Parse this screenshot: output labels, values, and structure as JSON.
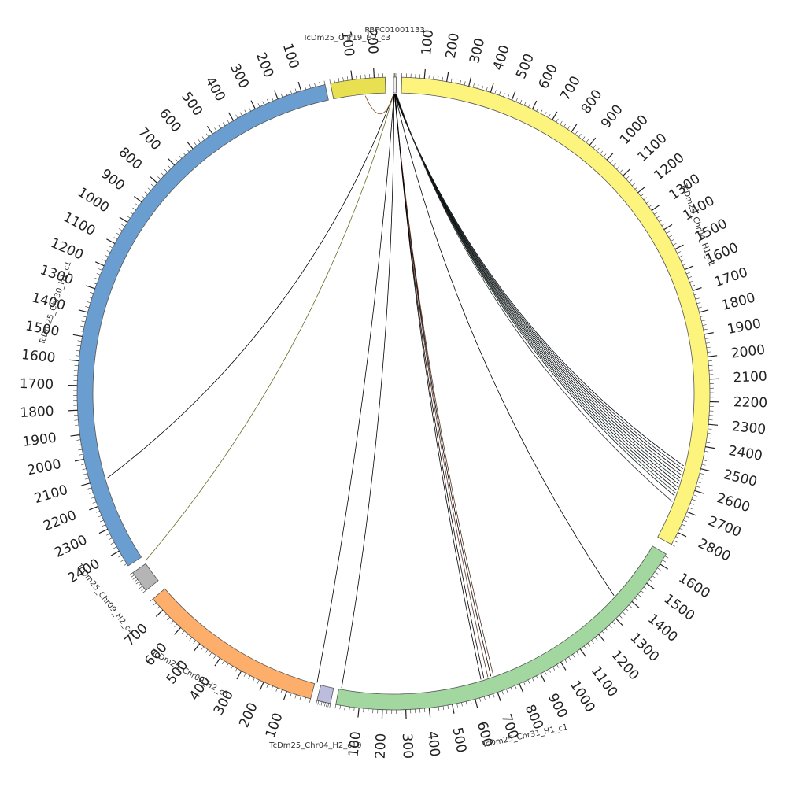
{
  "diagram": {
    "type": "circos",
    "segments": [
      {
        "name": "PBFC01001133",
        "length": 12,
        "color": "#eeeeee",
        "label_angle": 0.2,
        "label_r": 462,
        "label_rot": 0,
        "ticks": [],
        "tick_end": 12
      },
      {
        "name": "TcDm25_Chr04_H1_c1",
        "length": 2860,
        "color": "#fdf47e",
        "label_angle": 61,
        "label_r": 442,
        "label_rot": 71,
        "ticks": [
          "100",
          "200",
          "300",
          "400",
          "500",
          "600",
          "700",
          "800",
          "900",
          "1000",
          "1100",
          "1200",
          "1300",
          "1400",
          "1500",
          "1600",
          "1700",
          "1800",
          "1900",
          "2000",
          "2100",
          "2200",
          "2300",
          "2400",
          "2500",
          "2600",
          "2700",
          "2800"
        ],
        "tick_end": 2860
      },
      {
        "name": "TcDm25_Chr31_H1_c1",
        "length": 1650,
        "color": "#a3d7a0",
        "label_angle": 159,
        "label_r": 466,
        "label_rot": -12,
        "ticks": [
          "1600",
          "1500",
          "1400",
          "1300",
          "1200",
          "1100",
          "1000",
          "900",
          "800",
          "700",
          "600",
          "500",
          "400",
          "300",
          "200",
          "100"
        ],
        "tick_end": 1650,
        "reverse": true
      },
      {
        "name": "TcDm25_Chr04_H2_c10",
        "length": 40,
        "color": "#bcbcdd",
        "label_angle": 192.5,
        "label_r": 458,
        "label_rot": 0,
        "ticks": [],
        "tick_end": 40
      },
      {
        "name": "TcDm25_Chr09_H2_c5",
        "length": 760,
        "color": "#fdae6b",
        "label_angle": 216,
        "label_r": 440,
        "label_rot": 30,
        "ticks": [
          "100",
          "200",
          "300",
          "400",
          "500",
          "600",
          "700"
        ],
        "tick_end": 760
      },
      {
        "name": "TcDm25_Chr09_H2_c4",
        "length": 40,
        "color": "#b5b5b5",
        "label_angle": 234.5,
        "label_r": 450,
        "label_rot": 52,
        "ticks": [],
        "tick_end": 40
      },
      {
        "name": "TcDm25_Chr30_H1_c1",
        "length": 2470,
        "color": "#6a9ed0",
        "label_angle": 285,
        "label_r": 445,
        "label_rot": -72,
        "ticks": [
          "2400",
          "2300",
          "2200",
          "2100",
          "2000",
          "1900",
          "1800",
          "1700",
          "1600",
          "1500",
          "1400",
          "1300",
          "1200",
          "1100",
          "1000",
          "900",
          "800",
          "700",
          "600",
          "500",
          "400",
          "300",
          "200",
          "100"
        ],
        "tick_end": 2470,
        "reverse": true
      },
      {
        "name": "TcDm25_Chr19_H2_c3",
        "length": 250,
        "color": "#e8e050",
        "label_angle": 352.5,
        "label_r": 456,
        "label_rot": 0,
        "ticks": [
          "100",
          "200"
        ],
        "tick_end": 250
      }
    ],
    "links": [
      {
        "from_deg": 0.2,
        "to_deg": 104.0,
        "color": "#000000"
      },
      {
        "from_deg": 0.2,
        "to_deg": 104.6,
        "color": "#1a2a3a"
      },
      {
        "from_deg": 0.2,
        "to_deg": 105.2,
        "color": "#000000"
      },
      {
        "from_deg": 0.3,
        "to_deg": 105.8,
        "color": "#2a2a2a"
      },
      {
        "from_deg": 0.3,
        "to_deg": 106.4,
        "color": "#000000"
      },
      {
        "from_deg": 0.3,
        "to_deg": 107.0,
        "color": "#113333"
      },
      {
        "from_deg": 0.4,
        "to_deg": 107.6,
        "color": "#000000"
      },
      {
        "from_deg": 0.4,
        "to_deg": 108.2,
        "color": "#222222"
      },
      {
        "from_deg": 0.4,
        "to_deg": 108.8,
        "color": "#000000"
      },
      {
        "from_deg": 0.5,
        "to_deg": 109.4,
        "color": "#1b3b3b"
      },
      {
        "from_deg": 0.5,
        "to_deg": 110.0,
        "color": "#000000"
      },
      {
        "from_deg": 0.6,
        "to_deg": 111.2,
        "color": "#333333"
      },
      {
        "from_deg": 0.3,
        "to_deg": 132.5,
        "color": "#000000"
      },
      {
        "from_deg": 0.2,
        "to_deg": 160.5,
        "color": "#553322"
      },
      {
        "from_deg": 0.2,
        "to_deg": 161.0,
        "color": "#000000"
      },
      {
        "from_deg": 0.3,
        "to_deg": 161.6,
        "color": "#663322"
      },
      {
        "from_deg": 0.3,
        "to_deg": 162.4,
        "color": "#000000"
      },
      {
        "from_deg": 0.3,
        "to_deg": 163.0,
        "color": "#000000"
      },
      {
        "from_deg": 0.1,
        "to_deg": 190.0,
        "color": "#000000"
      },
      {
        "from_deg": 0.1,
        "to_deg": 194.8,
        "color": "#000000"
      },
      {
        "from_deg": 0.0,
        "to_deg": 236.0,
        "color": "#6b6b22"
      },
      {
        "from_deg": 0.0,
        "to_deg": 253.5,
        "color": "#000000"
      },
      {
        "from_deg": 0.0,
        "to_deg": 354.6,
        "color": "#7a4a22"
      }
    ]
  }
}
